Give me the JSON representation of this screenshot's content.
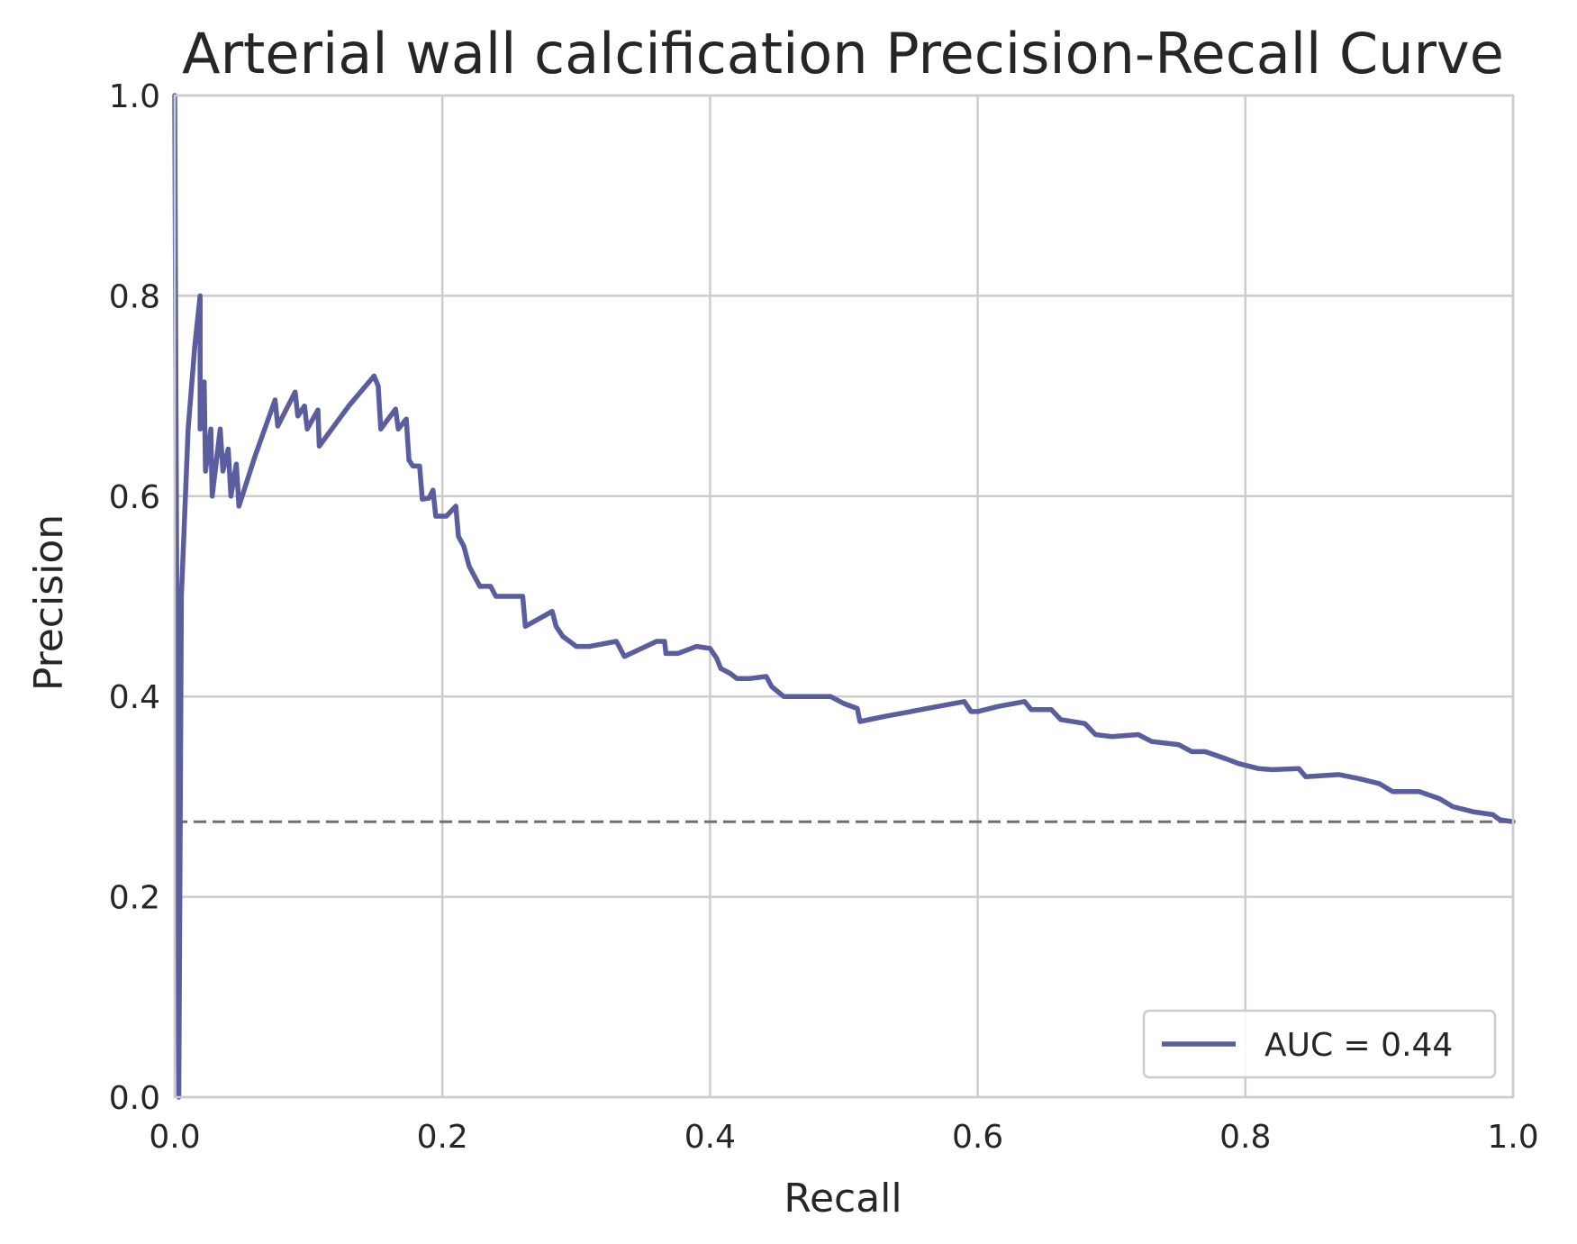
{
  "chart_data": {
    "type": "line",
    "title": "Arterial wall calcification Precision-Recall Curve",
    "xlabel": "Recall",
    "ylabel": "Precision",
    "xlim": [
      0,
      1
    ],
    "ylim": [
      0,
      1
    ],
    "xticks": [
      "0.0",
      "0.2",
      "0.4",
      "0.6",
      "0.8",
      "1.0"
    ],
    "yticks": [
      "0.0",
      "0.2",
      "0.4",
      "0.6",
      "0.8",
      "1.0"
    ],
    "grid": true,
    "legend_position": "lower-right",
    "baseline": {
      "y": 0.275,
      "style": "dashed",
      "color": "#707070"
    },
    "series": [
      {
        "name": "AUC = 0.44",
        "color": "#5a5d9e",
        "points": [
          [
            0.0,
            1.0
          ],
          [
            0.003,
            0.0
          ],
          [
            0.005,
            0.5
          ],
          [
            0.01,
            0.667
          ],
          [
            0.015,
            0.75
          ],
          [
            0.019,
            0.8
          ],
          [
            0.019,
            0.667
          ],
          [
            0.022,
            0.714
          ],
          [
            0.023,
            0.625
          ],
          [
            0.027,
            0.667
          ],
          [
            0.028,
            0.6
          ],
          [
            0.034,
            0.667
          ],
          [
            0.036,
            0.625
          ],
          [
            0.04,
            0.647
          ],
          [
            0.042,
            0.6
          ],
          [
            0.046,
            0.632
          ],
          [
            0.048,
            0.59
          ],
          [
            0.06,
            0.64
          ],
          [
            0.075,
            0.696
          ],
          [
            0.077,
            0.67
          ],
          [
            0.09,
            0.704
          ],
          [
            0.092,
            0.68
          ],
          [
            0.097,
            0.69
          ],
          [
            0.099,
            0.667
          ],
          [
            0.107,
            0.686
          ],
          [
            0.108,
            0.65
          ],
          [
            0.13,
            0.69
          ],
          [
            0.149,
            0.72
          ],
          [
            0.152,
            0.71
          ],
          [
            0.154,
            0.667
          ],
          [
            0.165,
            0.687
          ],
          [
            0.167,
            0.667
          ],
          [
            0.173,
            0.677
          ],
          [
            0.175,
            0.636
          ],
          [
            0.178,
            0.63
          ],
          [
            0.183,
            0.63
          ],
          [
            0.185,
            0.597
          ],
          [
            0.19,
            0.598
          ],
          [
            0.193,
            0.606
          ],
          [
            0.195,
            0.58
          ],
          [
            0.203,
            0.58
          ],
          [
            0.21,
            0.59
          ],
          [
            0.212,
            0.56
          ],
          [
            0.216,
            0.55
          ],
          [
            0.22,
            0.53
          ],
          [
            0.228,
            0.51
          ],
          [
            0.236,
            0.51
          ],
          [
            0.24,
            0.5
          ],
          [
            0.26,
            0.5
          ],
          [
            0.262,
            0.47
          ],
          [
            0.282,
            0.485
          ],
          [
            0.285,
            0.47
          ],
          [
            0.29,
            0.46
          ],
          [
            0.295,
            0.455
          ],
          [
            0.3,
            0.45
          ],
          [
            0.31,
            0.45
          ],
          [
            0.33,
            0.455
          ],
          [
            0.336,
            0.44
          ],
          [
            0.36,
            0.455
          ],
          [
            0.366,
            0.455
          ],
          [
            0.367,
            0.443
          ],
          [
            0.376,
            0.443
          ],
          [
            0.39,
            0.45
          ],
          [
            0.4,
            0.448
          ],
          [
            0.405,
            0.438
          ],
          [
            0.408,
            0.428
          ],
          [
            0.415,
            0.423
          ],
          [
            0.42,
            0.418
          ],
          [
            0.43,
            0.418
          ],
          [
            0.442,
            0.42
          ],
          [
            0.446,
            0.41
          ],
          [
            0.455,
            0.4
          ],
          [
            0.465,
            0.4
          ],
          [
            0.49,
            0.4
          ],
          [
            0.5,
            0.393
          ],
          [
            0.51,
            0.388
          ],
          [
            0.512,
            0.375
          ],
          [
            0.53,
            0.38
          ],
          [
            0.55,
            0.385
          ],
          [
            0.57,
            0.39
          ],
          [
            0.59,
            0.395
          ],
          [
            0.595,
            0.385
          ],
          [
            0.6,
            0.385
          ],
          [
            0.615,
            0.39
          ],
          [
            0.635,
            0.395
          ],
          [
            0.64,
            0.387
          ],
          [
            0.655,
            0.387
          ],
          [
            0.662,
            0.377
          ],
          [
            0.68,
            0.373
          ],
          [
            0.688,
            0.362
          ],
          [
            0.7,
            0.36
          ],
          [
            0.72,
            0.362
          ],
          [
            0.73,
            0.355
          ],
          [
            0.75,
            0.352
          ],
          [
            0.76,
            0.345
          ],
          [
            0.77,
            0.345
          ],
          [
            0.785,
            0.338
          ],
          [
            0.795,
            0.333
          ],
          [
            0.81,
            0.328
          ],
          [
            0.82,
            0.327
          ],
          [
            0.84,
            0.328
          ],
          [
            0.845,
            0.32
          ],
          [
            0.87,
            0.322
          ],
          [
            0.885,
            0.318
          ],
          [
            0.9,
            0.313
          ],
          [
            0.91,
            0.305
          ],
          [
            0.93,
            0.305
          ],
          [
            0.945,
            0.298
          ],
          [
            0.955,
            0.29
          ],
          [
            0.97,
            0.285
          ],
          [
            0.985,
            0.282
          ],
          [
            0.99,
            0.277
          ],
          [
            1.0,
            0.275
          ]
        ]
      }
    ]
  }
}
